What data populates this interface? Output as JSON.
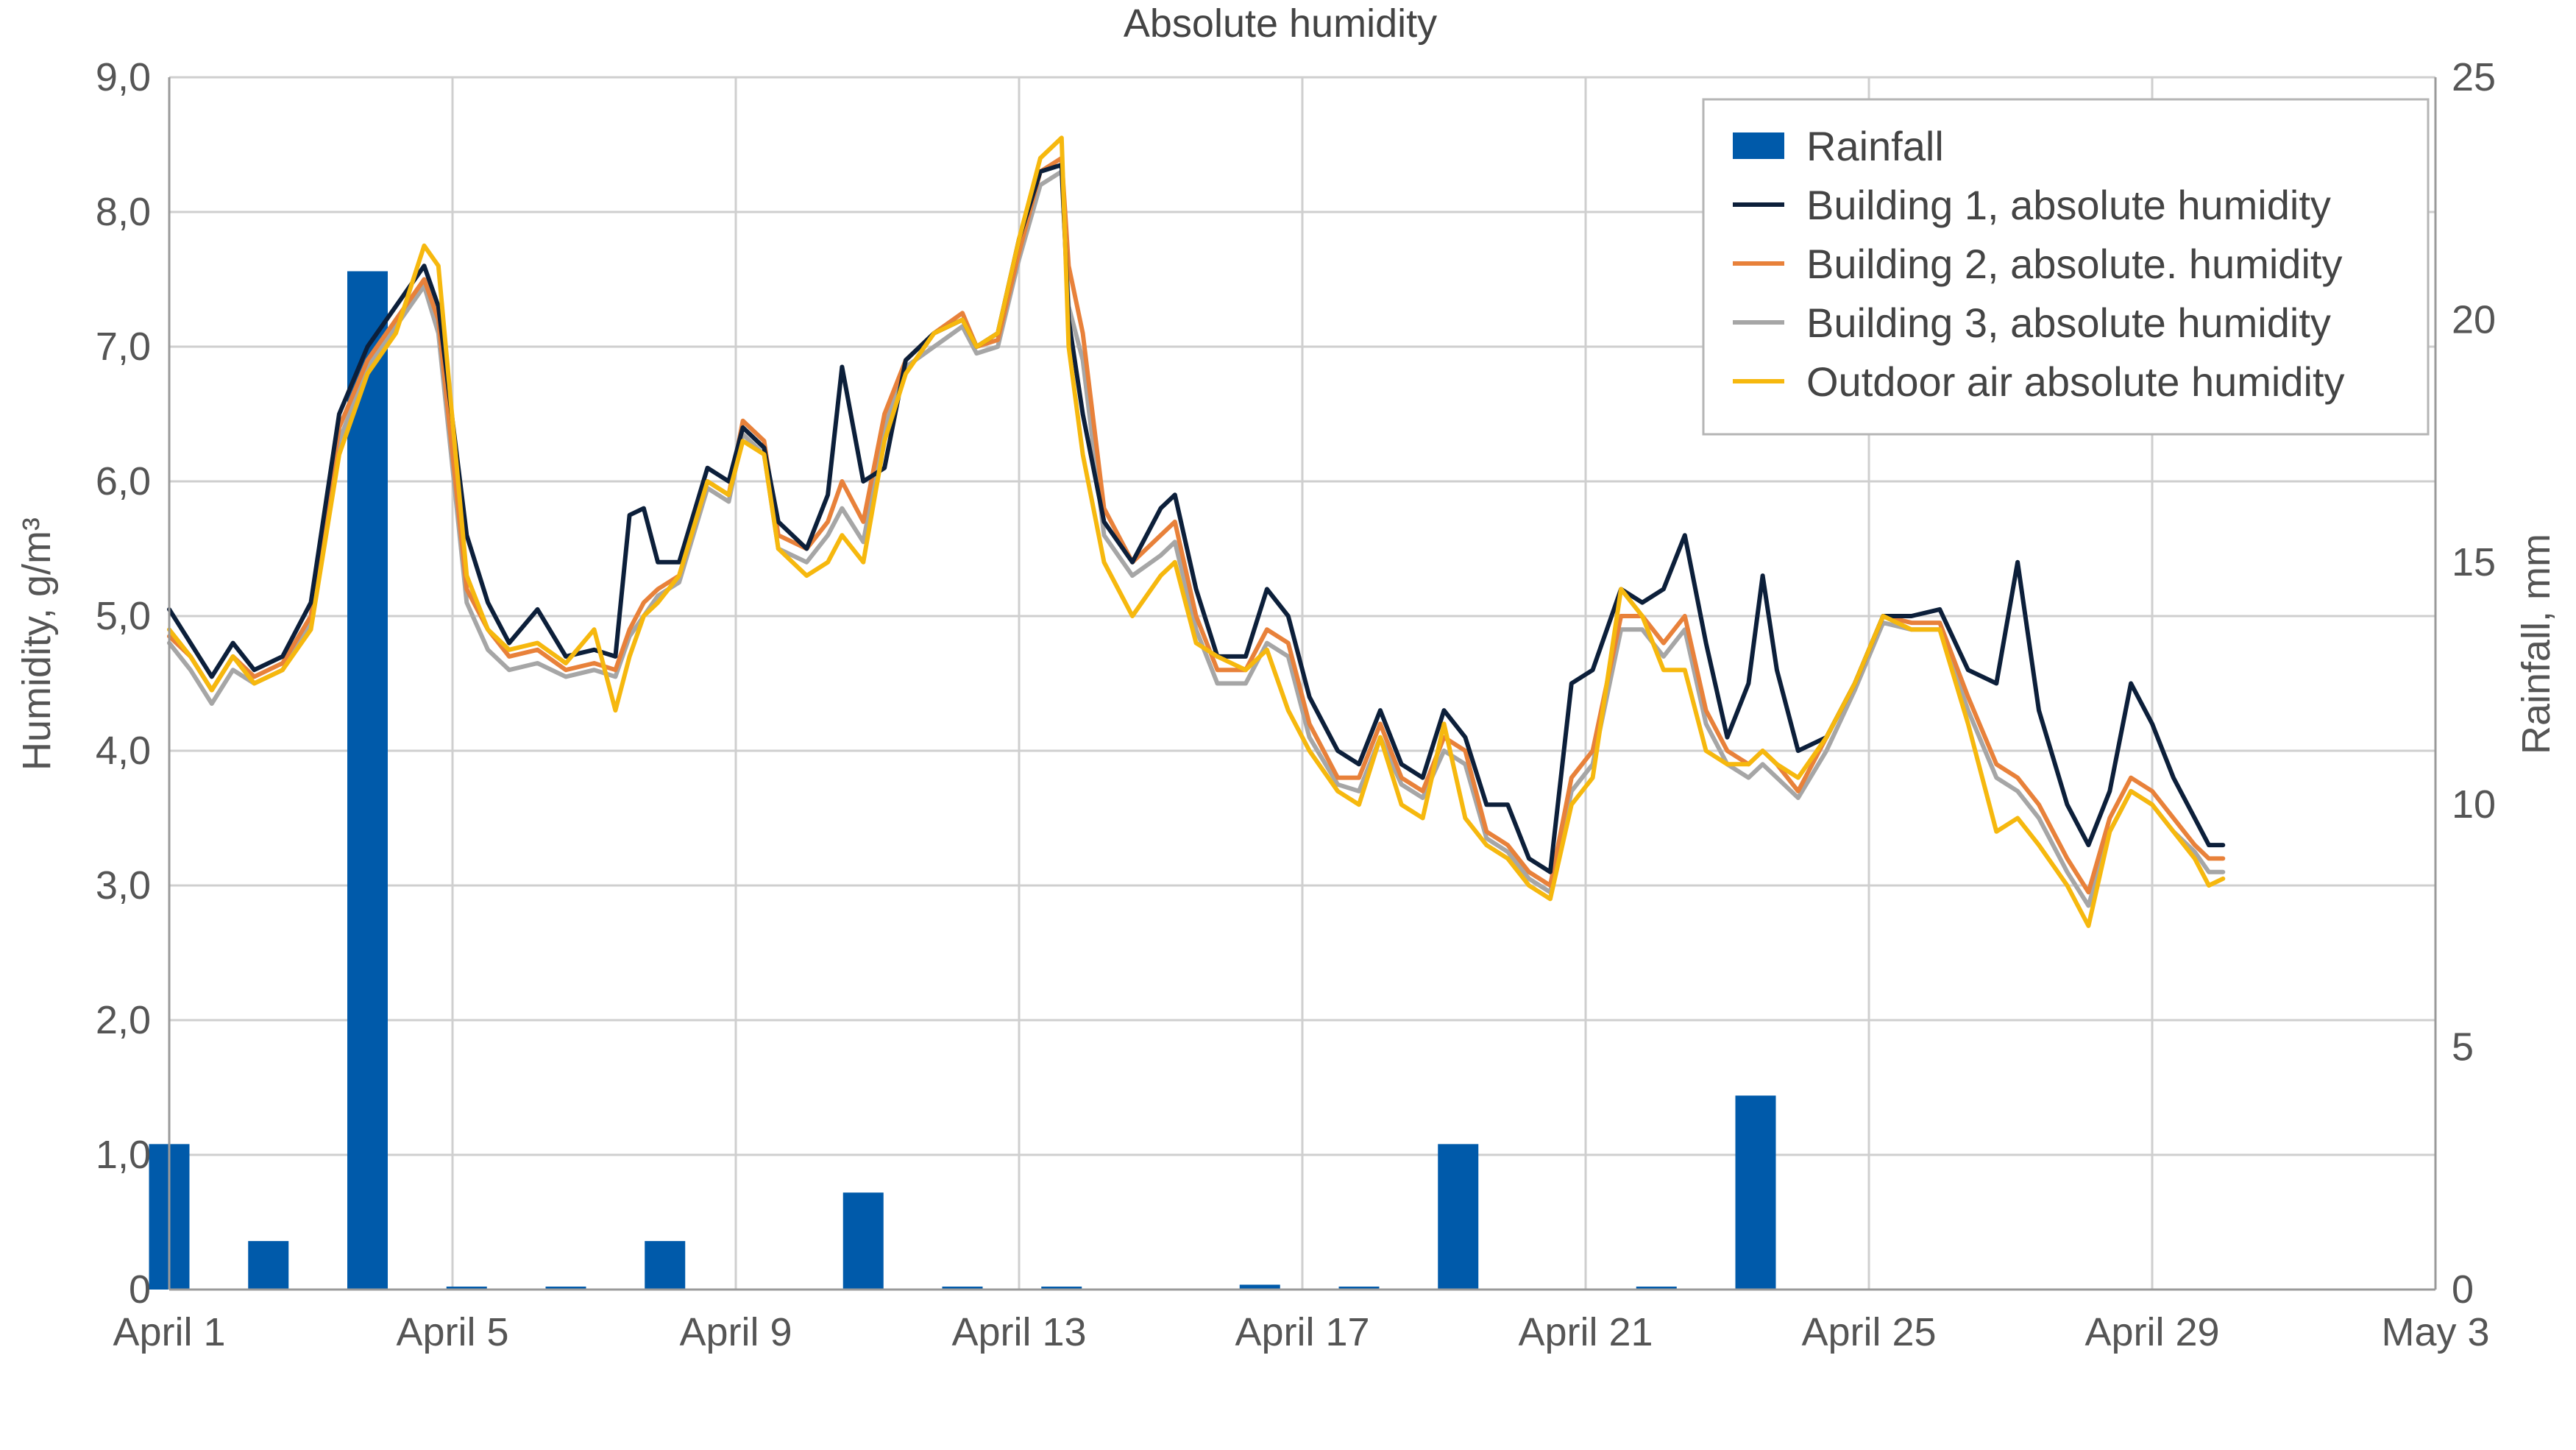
{
  "chart_data": {
    "type": "bar+line",
    "title": "Absolute humidity",
    "ylabel_left": "Humidity, g/m³",
    "ylabel_right": "Rainfall, mm",
    "x_ticks": [
      "April 1",
      "April 5",
      "April 9",
      "April 13",
      "April 17",
      "April 21",
      "April 25",
      "April 29",
      "May 3"
    ],
    "xlim_days": [
      1,
      33
    ],
    "y_left": {
      "ylim": [
        0,
        9
      ],
      "ticks": [
        "0",
        "1,0",
        "2,0",
        "3,0",
        "4,0",
        "5,0",
        "6,0",
        "7,0",
        "8,0",
        "9,0"
      ]
    },
    "y_right": {
      "ylim": [
        0,
        25
      ],
      "ticks": [
        "0",
        "5",
        "10",
        "15",
        "20",
        "25"
      ]
    },
    "grid": true,
    "legend_position": "top-right",
    "colors": {
      "rainfall": "#005aaa",
      "building1": "#0c1f3a",
      "building2": "#e8813a",
      "building3": "#a6a6a6",
      "outdoor": "#f6b80e",
      "grid": "#cfcfcf",
      "axis": "#9a9a9a"
    },
    "series_names": {
      "rainfall": "Rainfall",
      "building1": "Building 1, absolute humidity",
      "building2": "Building 2, absolute. humidity",
      "building3": "Building 3, absolute humidity",
      "outdoor": "Outdoor air absolute humidity"
    },
    "rainfall": [
      {
        "day": 1.0,
        "mm": 3.0
      },
      {
        "day": 2.4,
        "mm": 1.0
      },
      {
        "day": 3.8,
        "mm": 21.0
      },
      {
        "day": 5.2,
        "mm": 0.05
      },
      {
        "day": 6.6,
        "mm": 0.05
      },
      {
        "day": 8.0,
        "mm": 1.0
      },
      {
        "day": 10.8,
        "mm": 2.0
      },
      {
        "day": 12.2,
        "mm": 0.05
      },
      {
        "day": 13.6,
        "mm": 0.05
      },
      {
        "day": 16.4,
        "mm": 0.1
      },
      {
        "day": 17.8,
        "mm": 0.05
      },
      {
        "day": 19.2,
        "mm": 3.0
      },
      {
        "day": 22.0,
        "mm": 0.05
      },
      {
        "day": 23.4,
        "mm": 4.0
      }
    ],
    "building1": [
      [
        1.0,
        5.05
      ],
      [
        1.3,
        4.8
      ],
      [
        1.6,
        4.55
      ],
      [
        1.9,
        4.8
      ],
      [
        2.2,
        4.6
      ],
      [
        2.6,
        4.7
      ],
      [
        3.0,
        5.1
      ],
      [
        3.4,
        6.5
      ],
      [
        3.8,
        7.0
      ],
      [
        4.2,
        7.3
      ],
      [
        4.6,
        7.6
      ],
      [
        4.8,
        7.3
      ],
      [
        5.2,
        5.6
      ],
      [
        5.5,
        5.1
      ],
      [
        5.8,
        4.8
      ],
      [
        6.2,
        5.05
      ],
      [
        6.6,
        4.7
      ],
      [
        7.0,
        4.75
      ],
      [
        7.3,
        4.7
      ],
      [
        7.5,
        5.75
      ],
      [
        7.7,
        5.8
      ],
      [
        7.9,
        5.4
      ],
      [
        8.2,
        5.4
      ],
      [
        8.6,
        6.1
      ],
      [
        8.9,
        6.0
      ],
      [
        9.1,
        6.4
      ],
      [
        9.4,
        6.25
      ],
      [
        9.6,
        5.7
      ],
      [
        10.0,
        5.5
      ],
      [
        10.3,
        5.9
      ],
      [
        10.5,
        6.85
      ],
      [
        10.8,
        6.0
      ],
      [
        11.1,
        6.1
      ],
      [
        11.4,
        6.9
      ],
      [
        11.8,
        7.1
      ],
      [
        12.2,
        7.2
      ],
      [
        12.4,
        7.0
      ],
      [
        12.7,
        7.1
      ],
      [
        13.0,
        7.8
      ],
      [
        13.3,
        8.3
      ],
      [
        13.6,
        8.35
      ],
      [
        13.7,
        7.2
      ],
      [
        13.9,
        6.5
      ],
      [
        14.2,
        5.7
      ],
      [
        14.6,
        5.4
      ],
      [
        15.0,
        5.8
      ],
      [
        15.2,
        5.9
      ],
      [
        15.5,
        5.2
      ],
      [
        15.8,
        4.7
      ],
      [
        16.2,
        4.7
      ],
      [
        16.5,
        5.2
      ],
      [
        16.8,
        5.0
      ],
      [
        17.1,
        4.4
      ],
      [
        17.5,
        4.0
      ],
      [
        17.8,
        3.9
      ],
      [
        18.1,
        4.3
      ],
      [
        18.4,
        3.9
      ],
      [
        18.7,
        3.8
      ],
      [
        19.0,
        4.3
      ],
      [
        19.3,
        4.1
      ],
      [
        19.6,
        3.6
      ],
      [
        19.9,
        3.6
      ],
      [
        20.2,
        3.2
      ],
      [
        20.5,
        3.1
      ],
      [
        20.8,
        4.5
      ],
      [
        21.1,
        4.6
      ],
      [
        21.5,
        5.2
      ],
      [
        21.8,
        5.1
      ],
      [
        22.1,
        5.2
      ],
      [
        22.4,
        5.6
      ],
      [
        22.7,
        4.8
      ],
      [
        23.0,
        4.1
      ],
      [
        23.3,
        4.5
      ],
      [
        23.5,
        5.3
      ],
      [
        23.7,
        4.6
      ],
      [
        24.0,
        4.0
      ],
      [
        24.4,
        4.1
      ],
      [
        24.8,
        4.5
      ],
      [
        25.2,
        5.0
      ],
      [
        25.6,
        5.0
      ],
      [
        26.0,
        5.05
      ],
      [
        26.4,
        4.6
      ],
      [
        26.8,
        4.5
      ],
      [
        27.1,
        5.4
      ],
      [
        27.4,
        4.3
      ],
      [
        27.8,
        3.6
      ],
      [
        28.1,
        3.3
      ],
      [
        28.4,
        3.7
      ],
      [
        28.7,
        4.5
      ],
      [
        29.0,
        4.2
      ],
      [
        29.3,
        3.8
      ],
      [
        29.6,
        3.5
      ],
      [
        29.8,
        3.3
      ],
      [
        30.0,
        3.3
      ]
    ],
    "building2": [
      [
        1.0,
        4.85
      ],
      [
        1.3,
        4.7
      ],
      [
        1.6,
        4.45
      ],
      [
        1.9,
        4.7
      ],
      [
        2.2,
        4.55
      ],
      [
        2.6,
        4.65
      ],
      [
        3.0,
        5.0
      ],
      [
        3.4,
        6.4
      ],
      [
        3.8,
        6.9
      ],
      [
        4.2,
        7.2
      ],
      [
        4.6,
        7.5
      ],
      [
        4.8,
        7.2
      ],
      [
        5.2,
        5.2
      ],
      [
        5.5,
        4.9
      ],
      [
        5.8,
        4.7
      ],
      [
        6.2,
        4.75
      ],
      [
        6.6,
        4.6
      ],
      [
        7.0,
        4.65
      ],
      [
        7.3,
        4.6
      ],
      [
        7.5,
        4.9
      ],
      [
        7.7,
        5.1
      ],
      [
        7.9,
        5.2
      ],
      [
        8.2,
        5.3
      ],
      [
        8.6,
        6.0
      ],
      [
        8.9,
        5.9
      ],
      [
        9.1,
        6.45
      ],
      [
        9.4,
        6.3
      ],
      [
        9.6,
        5.6
      ],
      [
        10.0,
        5.5
      ],
      [
        10.3,
        5.7
      ],
      [
        10.5,
        6.0
      ],
      [
        10.8,
        5.7
      ],
      [
        11.1,
        6.5
      ],
      [
        11.4,
        6.9
      ],
      [
        11.8,
        7.1
      ],
      [
        12.2,
        7.25
      ],
      [
        12.4,
        7.0
      ],
      [
        12.7,
        7.05
      ],
      [
        13.0,
        7.7
      ],
      [
        13.3,
        8.3
      ],
      [
        13.6,
        8.4
      ],
      [
        13.7,
        7.6
      ],
      [
        13.9,
        7.1
      ],
      [
        14.2,
        5.8
      ],
      [
        14.6,
        5.4
      ],
      [
        15.0,
        5.6
      ],
      [
        15.2,
        5.7
      ],
      [
        15.5,
        5.0
      ],
      [
        15.8,
        4.6
      ],
      [
        16.2,
        4.6
      ],
      [
        16.5,
        4.9
      ],
      [
        16.8,
        4.8
      ],
      [
        17.1,
        4.2
      ],
      [
        17.5,
        3.8
      ],
      [
        17.8,
        3.8
      ],
      [
        18.1,
        4.2
      ],
      [
        18.4,
        3.8
      ],
      [
        18.7,
        3.7
      ],
      [
        19.0,
        4.1
      ],
      [
        19.3,
        4.0
      ],
      [
        19.6,
        3.4
      ],
      [
        19.9,
        3.3
      ],
      [
        20.2,
        3.1
      ],
      [
        20.5,
        3.0
      ],
      [
        20.8,
        3.8
      ],
      [
        21.1,
        4.0
      ],
      [
        21.5,
        5.0
      ],
      [
        21.8,
        5.0
      ],
      [
        22.1,
        4.8
      ],
      [
        22.4,
        5.0
      ],
      [
        22.7,
        4.3
      ],
      [
        23.0,
        4.0
      ],
      [
        23.3,
        3.9
      ],
      [
        23.5,
        4.0
      ],
      [
        23.7,
        3.9
      ],
      [
        24.0,
        3.7
      ],
      [
        24.4,
        4.1
      ],
      [
        24.8,
        4.5
      ],
      [
        25.2,
        5.0
      ],
      [
        25.6,
        4.95
      ],
      [
        26.0,
        4.95
      ],
      [
        26.4,
        4.4
      ],
      [
        26.8,
        3.9
      ],
      [
        27.1,
        3.8
      ],
      [
        27.4,
        3.6
      ],
      [
        27.8,
        3.2
      ],
      [
        28.1,
        2.95
      ],
      [
        28.4,
        3.5
      ],
      [
        28.7,
        3.8
      ],
      [
        29.0,
        3.7
      ],
      [
        29.3,
        3.5
      ],
      [
        29.6,
        3.3
      ],
      [
        29.8,
        3.2
      ],
      [
        30.0,
        3.2
      ]
    ],
    "building3": [
      [
        1.0,
        4.8
      ],
      [
        1.3,
        4.6
      ],
      [
        1.6,
        4.35
      ],
      [
        1.9,
        4.6
      ],
      [
        2.2,
        4.5
      ],
      [
        2.6,
        4.6
      ],
      [
        3.0,
        4.95
      ],
      [
        3.4,
        6.3
      ],
      [
        3.8,
        6.85
      ],
      [
        4.2,
        7.15
      ],
      [
        4.6,
        7.45
      ],
      [
        4.8,
        7.1
      ],
      [
        5.2,
        5.1
      ],
      [
        5.5,
        4.75
      ],
      [
        5.8,
        4.6
      ],
      [
        6.2,
        4.65
      ],
      [
        6.6,
        4.55
      ],
      [
        7.0,
        4.6
      ],
      [
        7.3,
        4.55
      ],
      [
        7.5,
        4.85
      ],
      [
        7.7,
        5.0
      ],
      [
        7.9,
        5.15
      ],
      [
        8.2,
        5.25
      ],
      [
        8.6,
        5.95
      ],
      [
        8.9,
        5.85
      ],
      [
        9.1,
        6.35
      ],
      [
        9.4,
        6.2
      ],
      [
        9.6,
        5.5
      ],
      [
        10.0,
        5.4
      ],
      [
        10.3,
        5.6
      ],
      [
        10.5,
        5.8
      ],
      [
        10.8,
        5.55
      ],
      [
        11.1,
        6.4
      ],
      [
        11.4,
        6.85
      ],
      [
        11.8,
        7.0
      ],
      [
        12.2,
        7.15
      ],
      [
        12.4,
        6.95
      ],
      [
        12.7,
        7.0
      ],
      [
        13.0,
        7.65
      ],
      [
        13.3,
        8.2
      ],
      [
        13.6,
        8.3
      ],
      [
        13.7,
        7.3
      ],
      [
        13.9,
        6.9
      ],
      [
        14.2,
        5.6
      ],
      [
        14.6,
        5.3
      ],
      [
        15.0,
        5.45
      ],
      [
        15.2,
        5.55
      ],
      [
        15.5,
        4.9
      ],
      [
        15.8,
        4.5
      ],
      [
        16.2,
        4.5
      ],
      [
        16.5,
        4.8
      ],
      [
        16.8,
        4.7
      ],
      [
        17.1,
        4.1
      ],
      [
        17.5,
        3.75
      ],
      [
        17.8,
        3.7
      ],
      [
        18.1,
        4.1
      ],
      [
        18.4,
        3.75
      ],
      [
        18.7,
        3.65
      ],
      [
        19.0,
        4.0
      ],
      [
        19.3,
        3.9
      ],
      [
        19.6,
        3.35
      ],
      [
        19.9,
        3.25
      ],
      [
        20.2,
        3.05
      ],
      [
        20.5,
        2.95
      ],
      [
        20.8,
        3.7
      ],
      [
        21.1,
        3.9
      ],
      [
        21.5,
        4.9
      ],
      [
        21.8,
        4.9
      ],
      [
        22.1,
        4.7
      ],
      [
        22.4,
        4.9
      ],
      [
        22.7,
        4.2
      ],
      [
        23.0,
        3.9
      ],
      [
        23.3,
        3.8
      ],
      [
        23.5,
        3.9
      ],
      [
        23.7,
        3.8
      ],
      [
        24.0,
        3.65
      ],
      [
        24.4,
        4.0
      ],
      [
        24.8,
        4.45
      ],
      [
        25.2,
        4.95
      ],
      [
        25.6,
        4.9
      ],
      [
        26.0,
        4.9
      ],
      [
        26.4,
        4.3
      ],
      [
        26.8,
        3.8
      ],
      [
        27.1,
        3.7
      ],
      [
        27.4,
        3.5
      ],
      [
        27.8,
        3.1
      ],
      [
        28.1,
        2.85
      ],
      [
        28.4,
        3.4
      ],
      [
        28.7,
        3.7
      ],
      [
        29.0,
        3.6
      ],
      [
        29.3,
        3.4
      ],
      [
        29.6,
        3.25
      ],
      [
        29.8,
        3.1
      ],
      [
        30.0,
        3.1
      ]
    ],
    "outdoor": [
      [
        1.0,
        4.9
      ],
      [
        1.3,
        4.7
      ],
      [
        1.6,
        4.45
      ],
      [
        1.9,
        4.7
      ],
      [
        2.2,
        4.5
      ],
      [
        2.6,
        4.6
      ],
      [
        3.0,
        4.9
      ],
      [
        3.4,
        6.2
      ],
      [
        3.8,
        6.8
      ],
      [
        4.2,
        7.1
      ],
      [
        4.6,
        7.75
      ],
      [
        4.8,
        7.6
      ],
      [
        5.2,
        5.3
      ],
      [
        5.5,
        4.9
      ],
      [
        5.8,
        4.75
      ],
      [
        6.2,
        4.8
      ],
      [
        6.6,
        4.65
      ],
      [
        7.0,
        4.9
      ],
      [
        7.3,
        4.3
      ],
      [
        7.5,
        4.7
      ],
      [
        7.7,
        5.0
      ],
      [
        7.9,
        5.1
      ],
      [
        8.2,
        5.3
      ],
      [
        8.6,
        6.0
      ],
      [
        8.9,
        5.9
      ],
      [
        9.1,
        6.3
      ],
      [
        9.4,
        6.2
      ],
      [
        9.6,
        5.5
      ],
      [
        10.0,
        5.3
      ],
      [
        10.3,
        5.4
      ],
      [
        10.5,
        5.6
      ],
      [
        10.8,
        5.4
      ],
      [
        11.1,
        6.3
      ],
      [
        11.4,
        6.8
      ],
      [
        11.8,
        7.1
      ],
      [
        12.2,
        7.2
      ],
      [
        12.4,
        7.0
      ],
      [
        12.7,
        7.1
      ],
      [
        13.0,
        7.8
      ],
      [
        13.3,
        8.4
      ],
      [
        13.6,
        8.55
      ],
      [
        13.7,
        7.0
      ],
      [
        13.9,
        6.2
      ],
      [
        14.2,
        5.4
      ],
      [
        14.6,
        5.0
      ],
      [
        15.0,
        5.3
      ],
      [
        15.2,
        5.4
      ],
      [
        15.5,
        4.8
      ],
      [
        15.8,
        4.7
      ],
      [
        16.2,
        4.6
      ],
      [
        16.5,
        4.75
      ],
      [
        16.8,
        4.3
      ],
      [
        17.1,
        4.0
      ],
      [
        17.5,
        3.7
      ],
      [
        17.8,
        3.6
      ],
      [
        18.1,
        4.1
      ],
      [
        18.4,
        3.6
      ],
      [
        18.7,
        3.5
      ],
      [
        19.0,
        4.2
      ],
      [
        19.3,
        3.5
      ],
      [
        19.6,
        3.3
      ],
      [
        19.9,
        3.2
      ],
      [
        20.2,
        3.0
      ],
      [
        20.5,
        2.9
      ],
      [
        20.8,
        3.6
      ],
      [
        21.1,
        3.8
      ],
      [
        21.5,
        5.2
      ],
      [
        21.8,
        5.0
      ],
      [
        22.1,
        4.6
      ],
      [
        22.4,
        4.6
      ],
      [
        22.7,
        4.0
      ],
      [
        23.0,
        3.9
      ],
      [
        23.3,
        3.9
      ],
      [
        23.5,
        4.0
      ],
      [
        23.7,
        3.9
      ],
      [
        24.0,
        3.8
      ],
      [
        24.4,
        4.1
      ],
      [
        24.8,
        4.5
      ],
      [
        25.2,
        5.0
      ],
      [
        25.6,
        4.9
      ],
      [
        26.0,
        4.9
      ],
      [
        26.4,
        4.2
      ],
      [
        26.8,
        3.4
      ],
      [
        27.1,
        3.5
      ],
      [
        27.4,
        3.3
      ],
      [
        27.8,
        3.0
      ],
      [
        28.1,
        2.7
      ],
      [
        28.4,
        3.4
      ],
      [
        28.7,
        3.7
      ],
      [
        29.0,
        3.6
      ],
      [
        29.3,
        3.4
      ],
      [
        29.6,
        3.2
      ],
      [
        29.8,
        3.0
      ],
      [
        30.0,
        3.05
      ]
    ]
  }
}
